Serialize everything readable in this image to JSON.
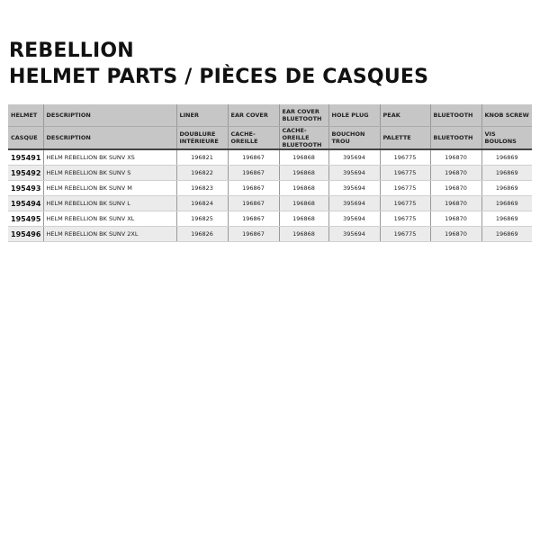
{
  "title_line1": "REBELLION",
  "title_line2": "HELMET PARTS / PIÈCES DE CASQUES",
  "headers_en": [
    "HELMET",
    "DESCRIPTION",
    "LINER",
    "EAR COVER",
    "EAR COVER BLUETOOTH",
    "HOLE PLUG",
    "PEAK",
    "BLUETOOTH",
    "KNOB SCREW"
  ],
  "headers_fr": [
    "CASQUE",
    "DESCRIPTION",
    "DOUBLURE INTÉRIEURE",
    "CACHE-OREILLE",
    "CACHE-OREILLE BLUETOOTH",
    "BOUCHON TROU",
    "PALETTE",
    "BLUETOOTH",
    "VIS BOULONS"
  ],
  "rows": [
    [
      "195491",
      "HELM REBELLION BK SUNV XS",
      "196821",
      "196867",
      "196868",
      "395694",
      "196775",
      "196870",
      "196869"
    ],
    [
      "195492",
      "HELM REBELLION BK SUNV S",
      "196822",
      "196867",
      "196868",
      "395694",
      "196775",
      "196870",
      "196869"
    ],
    [
      "195493",
      "HELM REBELLION BK SUNV M",
      "196823",
      "196867",
      "196868",
      "395694",
      "196775",
      "196870",
      "196869"
    ],
    [
      "195494",
      "HELM REBELLION BK SUNV L",
      "196824",
      "196867",
      "196868",
      "395694",
      "196775",
      "196870",
      "196869"
    ],
    [
      "195495",
      "HELM REBELLION BK SUNV XL",
      "196825",
      "196867",
      "196868",
      "395694",
      "196775",
      "196870",
      "196869"
    ],
    [
      "195496",
      "HELM REBELLION BK SUNV 2XL",
      "196826",
      "196867",
      "196868",
      "395694",
      "196775",
      "196870",
      "196869"
    ]
  ],
  "colors": {
    "header_bg": "#c6c6c6",
    "alt_row_bg": "#ebebeb"
  }
}
